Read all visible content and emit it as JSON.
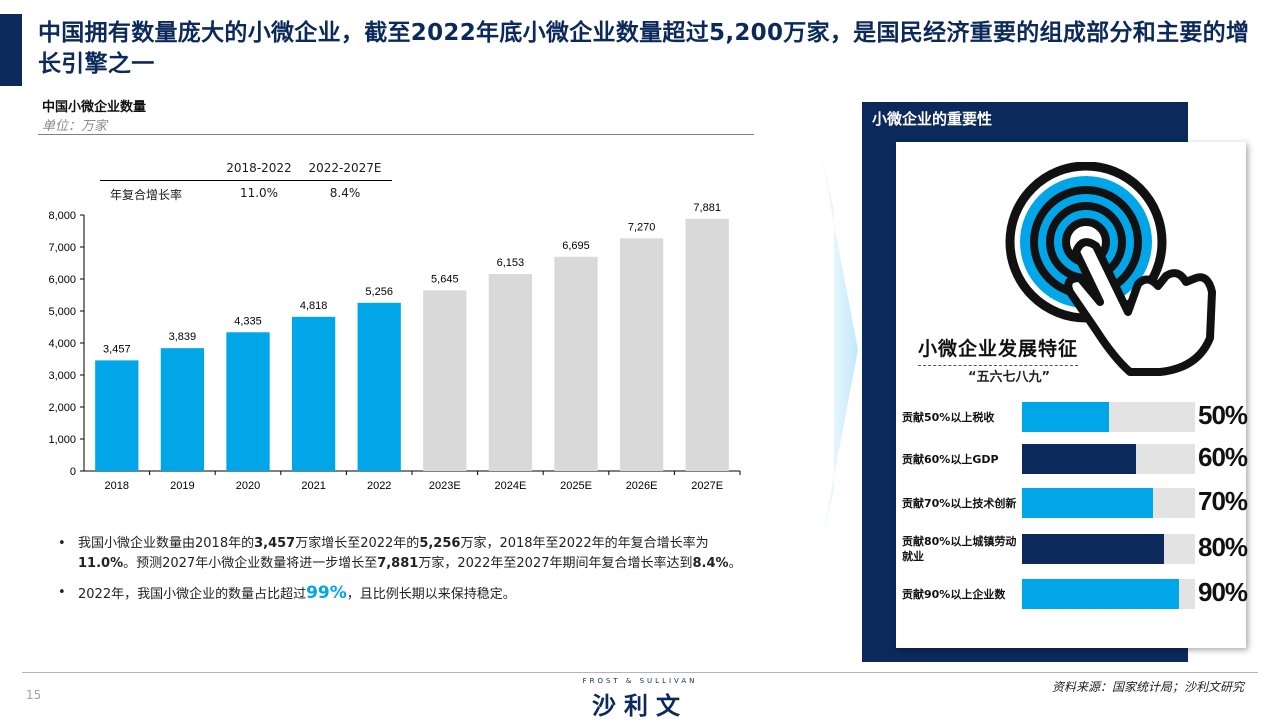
{
  "title": "中国拥有数量庞大的小微企业，截至2022年底小微企业数量超过5,200万家，是国民经济重要的组成部分和主要的增长引擎之一",
  "left_chart": {
    "title": "中国小微企业数量",
    "unit": "单位：万家",
    "cagr": {
      "label": "年复合增长率",
      "headers": [
        "2018-2022",
        "2022-2027E"
      ],
      "values": [
        "11.0%",
        "8.4%"
      ]
    }
  },
  "chart_data": {
    "type": "bar",
    "title": "中国小微企业数量",
    "unit": "单位：万家",
    "categories": [
      "2018",
      "2019",
      "2020",
      "2021",
      "2022",
      "2023E",
      "2024E",
      "2025E",
      "2026E",
      "2027E"
    ],
    "values": [
      3457,
      3839,
      4335,
      4818,
      5256,
      5645,
      6153,
      6695,
      7270,
      7881
    ],
    "value_labels": [
      "3,457",
      "3,839",
      "4,335",
      "4,818",
      "5,256",
      "5,645",
      "6,153",
      "6,695",
      "7,270",
      "7,881"
    ],
    "ylim": [
      0,
      8000
    ],
    "yticks": [
      0,
      1000,
      2000,
      3000,
      4000,
      5000,
      6000,
      7000,
      8000
    ],
    "ytick_labels": [
      "0",
      "1,000",
      "2,000",
      "3,000",
      "4,000",
      "5,000",
      "6,000",
      "7,000",
      "8,000"
    ],
    "actual_color": "#00a6e8",
    "forecast_color": "#d9d9d9",
    "actual_count": 5,
    "grid": false
  },
  "bullets": {
    "b1": {
      "p1": "我国小微企业数量由2018年的",
      "v1": "3,457",
      "p2": "万家增长至2022年的",
      "v2": "5,256",
      "p3": "万家，2018年至2022年的年复合增长率为",
      "v3": "11.0%",
      "p4": "。预测2027年小微企业数量将进一步增长至",
      "v4": "7,881",
      "p5": "万家，2022年至2027年期间年复合增长率达到",
      "v5": "8.4%",
      "p6": "。"
    },
    "b2": {
      "p1": "2022年，我国小微企业的数量占比超过",
      "v1": "99%",
      "p2": "，且比例长期以来保持稳定。"
    }
  },
  "panel": {
    "header": "小微企业的重要性",
    "icon": "touch-hand-icon",
    "feature_title": "小微企业发展特征",
    "feature_sub": "“五六七八九”",
    "rows": [
      {
        "label": "贡献50%以上税收",
        "pct": "50%",
        "fill": 0.5,
        "color": "#00a6e8"
      },
      {
        "label": "贡献60%以上GDP",
        "pct": "60%",
        "fill": 0.66,
        "color": "#0b2a5b"
      },
      {
        "label": "贡献70%以上技术创新",
        "pct": "70%",
        "fill": 0.76,
        "color": "#00a6e8"
      },
      {
        "label": "贡献80%以上城镇劳动就业",
        "pct": "80%",
        "fill": 0.82,
        "color": "#0b2a5b"
      },
      {
        "label": "贡献90%以上企业数",
        "pct": "90%",
        "fill": 0.91,
        "color": "#00a6e8"
      }
    ]
  },
  "footer": {
    "page": "15",
    "logo_top": "FROST & SULLIVAN",
    "logo_main": "沙利文",
    "source": "资料来源：国家统计局；沙利文研究"
  },
  "colors": {
    "navy": "#0b2a5b",
    "blue": "#00a6e8",
    "grey": "#d9d9d9"
  }
}
